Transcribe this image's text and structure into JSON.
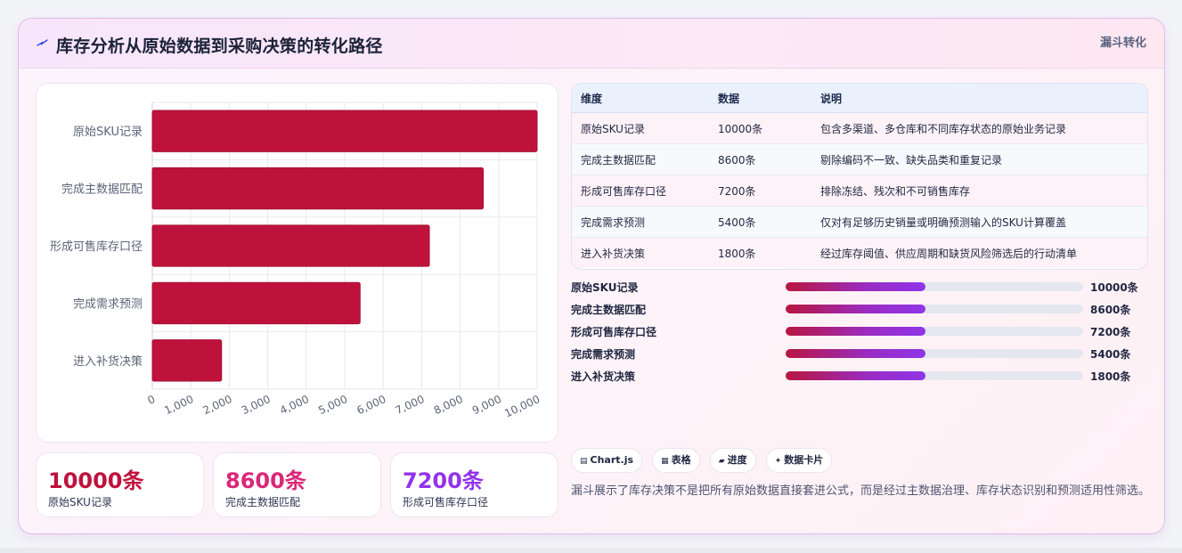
{
  "header": {
    "icon": "lightning-icon",
    "title": "库存分析从原始数据到采购决策的转化路径",
    "tag": "漏斗转化"
  },
  "colors": {
    "bar": "#be123c",
    "accent_red": "#be123c",
    "accent_pink": "#db2777",
    "accent_purple": "#9333ea"
  },
  "chart_data": {
    "type": "bar",
    "orientation": "horizontal",
    "categories": [
      "原始SKU记录",
      "完成主数据匹配",
      "形成可售库存口径",
      "完成需求预测",
      "进入补货决策"
    ],
    "values": [
      10000,
      8600,
      7200,
      5400,
      1800
    ],
    "xlim": [
      0,
      10000
    ],
    "x_ticks": [
      "0",
      "1,000",
      "2,000",
      "3,000",
      "4,000",
      "5,000",
      "6,000",
      "7,000",
      "8,000",
      "9,000",
      "10,000"
    ],
    "grid": true,
    "legend": "none"
  },
  "kpis": [
    {
      "value": "10000条",
      "label": "原始SKU记录",
      "color": "#be123c"
    },
    {
      "value": "8600条",
      "label": "完成主数据匹配",
      "color": "#db2777"
    },
    {
      "value": "7200条",
      "label": "形成可售库存口径",
      "color": "#9333ea"
    }
  ],
  "table": {
    "headers": [
      "维度",
      "数据",
      "说明"
    ],
    "rows": [
      [
        "原始SKU记录",
        "10000条",
        "包含多渠道、多仓库和不同库存状态的原始业务记录"
      ],
      [
        "完成主数据匹配",
        "8600条",
        "剔除编码不一致、缺失品类和重复记录"
      ],
      [
        "形成可售库存口径",
        "7200条",
        "排除冻结、残次和不可销售库存"
      ],
      [
        "完成需求预测",
        "5400条",
        "仅对有足够历史销量或明确预测输入的SKU计算覆盖"
      ],
      [
        "进入补货决策",
        "1800条",
        "经过库存阈值、供应周期和缺货风险筛选后的行动清单"
      ]
    ]
  },
  "progress": [
    {
      "label": "原始SKU记录",
      "value": "10000条",
      "fill": 0.47
    },
    {
      "label": "完成主数据匹配",
      "value": "8600条",
      "fill": 0.47
    },
    {
      "label": "形成可售库存口径",
      "value": "7200条",
      "fill": 0.47
    },
    {
      "label": "完成需求预测",
      "value": "5400条",
      "fill": 0.47
    },
    {
      "label": "进入补货决策",
      "value": "1800条",
      "fill": 0.47
    }
  ],
  "chips": [
    {
      "icon": "chart-icon",
      "glyph": "▤",
      "label": "Chart.js"
    },
    {
      "icon": "table-icon",
      "glyph": "▦",
      "label": "表格"
    },
    {
      "icon": "progress-icon",
      "glyph": "▰",
      "label": "进度"
    },
    {
      "icon": "sparkle-icon",
      "glyph": "✦",
      "label": "数据卡片"
    }
  ],
  "summary": "漏斗展示了库存决策不是把所有原始数据直接套进公式，而是经过主数据治理、库存状态识别和预测适用性筛选。"
}
